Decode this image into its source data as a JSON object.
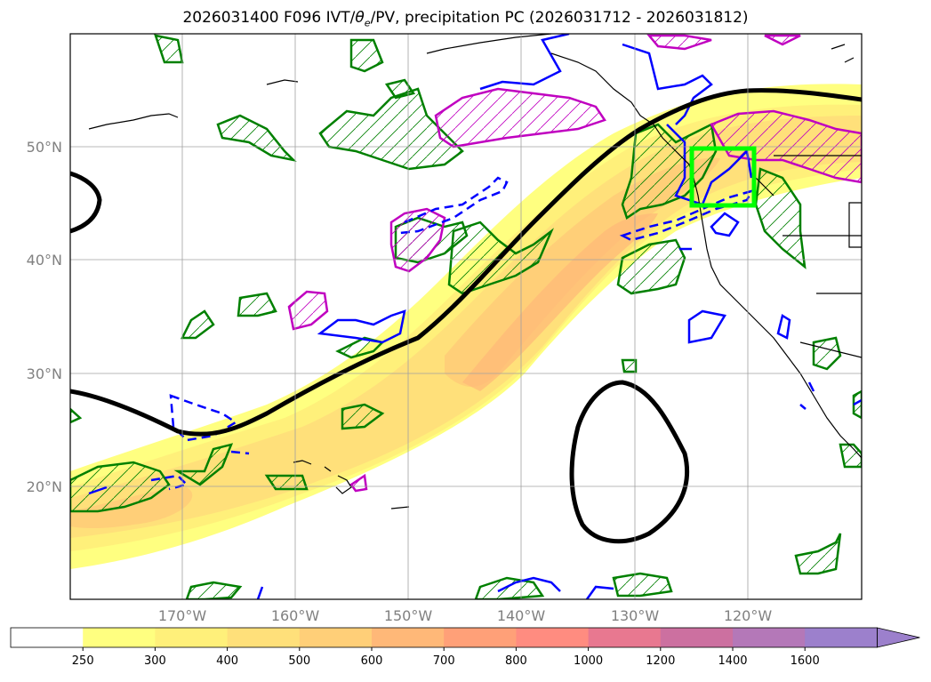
{
  "title": "2026031400 F096 IVT/θe/PV, precipitation PC (2026031712 - 2026031812)",
  "title_parts": {
    "prefix": "2026031400 F096 IVT/",
    "theta": "θ",
    "sub": "e",
    "suffix": "/PV, precipitation PC (2026031712 - 2026031812)"
  },
  "lat_labels": [
    "50°N",
    "40°N",
    "30°N",
    "20°N"
  ],
  "lon_labels": [
    "170°W",
    "160°W",
    "150°W",
    "140°W",
    "130°W",
    "120°W"
  ],
  "colorbar": {
    "ticks": [
      "250",
      "300",
      "400",
      "500",
      "600",
      "700",
      "800",
      "1000",
      "1200",
      "1400",
      "1600"
    ],
    "colors": [
      "#ffffff",
      "#ffff80",
      "#fff07a",
      "#ffe07a",
      "#ffcf78",
      "#ffb878",
      "#ffa078",
      "#ff8c80",
      "#e87890",
      "#cc70a0",
      "#b478b8",
      "#9c80cc"
    ]
  },
  "colors": {
    "pv_contour": "#000000",
    "precip_green": "#008000",
    "theta_blue": "#0000ff",
    "magenta": "#c000c0",
    "target_box": "#00ff00"
  }
}
